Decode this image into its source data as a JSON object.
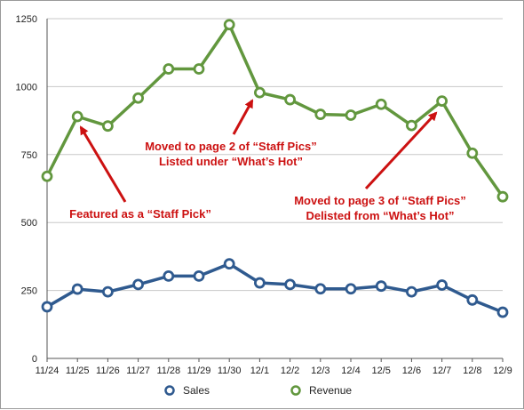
{
  "chart_data": {
    "type": "line",
    "title": "",
    "xlabel": "",
    "ylabel": "",
    "ylim": [
      0,
      1250
    ],
    "yticks": [
      0,
      250,
      500,
      750,
      1000,
      1250
    ],
    "grid": {
      "horizontal": true,
      "vertical": false
    },
    "legend_position": "bottom-center",
    "categories": [
      "11/24",
      "11/25",
      "11/26",
      "11/27",
      "11/28",
      "11/29",
      "11/30",
      "12/1",
      "12/2",
      "12/3",
      "12/4",
      "12/5",
      "12/6",
      "12/7",
      "12/8",
      "12/9"
    ],
    "series": [
      {
        "name": "Sales",
        "color": "#2f5a8f",
        "values": [
          190,
          255,
          245,
          272,
          303,
          303,
          348,
          278,
          272,
          256,
          256,
          266,
          245,
          270,
          215,
          170
        ]
      },
      {
        "name": "Revenue",
        "color": "#62973e",
        "values": [
          670,
          890,
          855,
          958,
          1065,
          1065,
          1228,
          978,
          952,
          898,
          895,
          935,
          857,
          947,
          755,
          595
        ]
      }
    ],
    "annotations": [
      {
        "lines": [
          "Featured as a “Staff Pick”"
        ],
        "color": "#cc1111",
        "points_to": {
          "category": "11/25",
          "series": "Revenue"
        }
      },
      {
        "lines": [
          "Moved to page 2 of “Staff Pics”",
          "Listed under “What’s Hot”"
        ],
        "color": "#cc1111",
        "points_to": {
          "category": "12/1",
          "series": "Revenue"
        }
      },
      {
        "lines": [
          "Moved to page 3 of “Staff Pics”",
          "Delisted from “What’s Hot”"
        ],
        "color": "#cc1111",
        "points_to": {
          "category": "12/7",
          "series": "Revenue"
        }
      }
    ]
  }
}
